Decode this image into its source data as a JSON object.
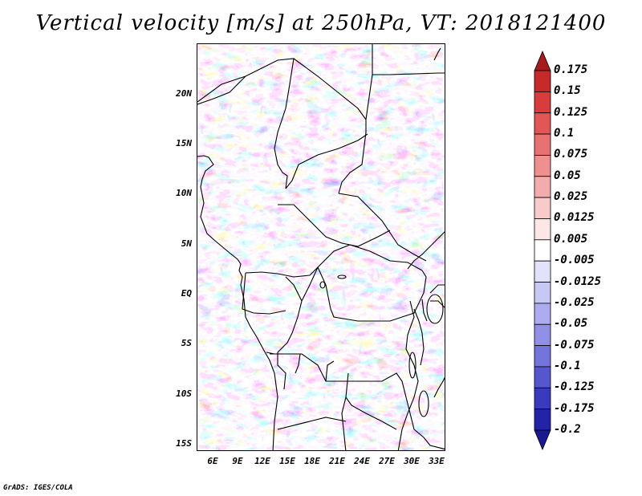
{
  "title": "Vertical velocity [m/s] at 250hPa, VT: 2018121400",
  "credit": "GrADS: IGES/COLA",
  "map": {
    "lat_labels": [
      "20N",
      "15N",
      "10N",
      "5N",
      "EQ",
      "5S",
      "10S",
      "15S"
    ],
    "lon_labels": [
      "6E",
      "9E",
      "12E",
      "15E",
      "18E",
      "21E",
      "24E",
      "27E",
      "30E",
      "33E"
    ],
    "lat_range": [
      -16,
      24
    ],
    "lon_range": [
      4,
      34
    ]
  },
  "colorbar": {
    "labels": [
      "0.175",
      "0.15",
      "0.125",
      "0.1",
      "0.075",
      "0.05",
      "0.025",
      "0.0125",
      "0.005",
      "-0.005",
      "-0.0125",
      "-0.025",
      "-0.05",
      "-0.075",
      "-0.1",
      "-0.125",
      "-0.175",
      "-0.2"
    ],
    "colors": [
      "#a51c1c",
      "#c72a2a",
      "#d83c3c",
      "#e25656",
      "#e87272",
      "#ee9090",
      "#f3acac",
      "#f8caca",
      "#fce6e6",
      "#ffffff",
      "#e2e2fa",
      "#c8c8f5",
      "#acacee",
      "#9090e6",
      "#7474dd",
      "#5656cf",
      "#3a3abe",
      "#2323a8",
      "#1a1a90"
    ]
  }
}
